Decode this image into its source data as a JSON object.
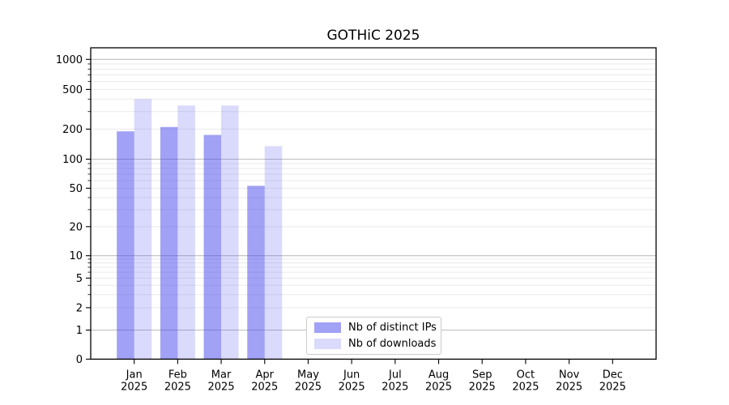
{
  "chart_data": {
    "type": "bar",
    "title": "GOTHiC 2025",
    "categories": [
      "Jan",
      "Feb",
      "Mar",
      "Apr",
      "May",
      "Jun",
      "Jul",
      "Aug",
      "Sep",
      "Oct",
      "Nov",
      "Dec"
    ],
    "x_tick_year": "2025",
    "series": [
      {
        "name": "Nb of distinct IPs",
        "color": "rgba(68,68,238,0.5)",
        "values": [
          190,
          210,
          175,
          53,
          null,
          null,
          null,
          null,
          null,
          null,
          null,
          null
        ]
      },
      {
        "name": "Nb of downloads",
        "color": "rgba(68,68,238,0.2)",
        "values": [
          400,
          345,
          345,
          135,
          null,
          null,
          null,
          null,
          null,
          null,
          null,
          null
        ]
      }
    ],
    "yscale": "symlog",
    "yticks": [
      0,
      1,
      2,
      5,
      10,
      20,
      50,
      100,
      200,
      500,
      1000
    ],
    "ylim": [
      0,
      1300
    ],
    "xlabel": "",
    "ylabel": "",
    "grid": {
      "on": true,
      "major_color": "#bdbdbd",
      "minor_color": "#eaeaea"
    },
    "axis_color": "#000000",
    "legend": {
      "position": "lower-center",
      "border_color": "#cccccc",
      "background": "#ffffff"
    }
  }
}
